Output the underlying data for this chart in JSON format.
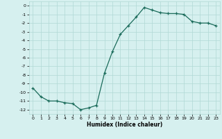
{
  "x": [
    0,
    1,
    2,
    3,
    4,
    5,
    6,
    7,
    8,
    9,
    10,
    11,
    12,
    13,
    14,
    15,
    16,
    17,
    18,
    19,
    20,
    21,
    22,
    23
  ],
  "y": [
    -9.5,
    -10.5,
    -11.0,
    -11.0,
    -11.2,
    -11.3,
    -12.0,
    -11.8,
    -11.5,
    -7.8,
    -5.3,
    -3.3,
    -2.3,
    -1.3,
    -0.2,
    -0.5,
    -0.8,
    -0.9,
    -0.9,
    -1.0,
    -1.8,
    -2.0,
    -2.0,
    -2.3
  ],
  "title": "",
  "xlabel": "Humidex (Indice chaleur)",
  "ylabel": "",
  "xlim": [
    -0.5,
    23.5
  ],
  "ylim": [
    -12.5,
    0.5
  ],
  "line_color": "#1a6b5a",
  "marker": "+",
  "bg_color": "#d6f0ef",
  "grid_color": "#b0d8d5",
  "yticks": [
    0,
    -1,
    -2,
    -3,
    -4,
    -5,
    -6,
    -7,
    -8,
    -9,
    -10,
    -11,
    -12
  ],
  "xticks": [
    0,
    1,
    2,
    3,
    4,
    5,
    6,
    7,
    8,
    9,
    10,
    11,
    12,
    13,
    14,
    15,
    16,
    17,
    18,
    19,
    20,
    21,
    22,
    23
  ]
}
